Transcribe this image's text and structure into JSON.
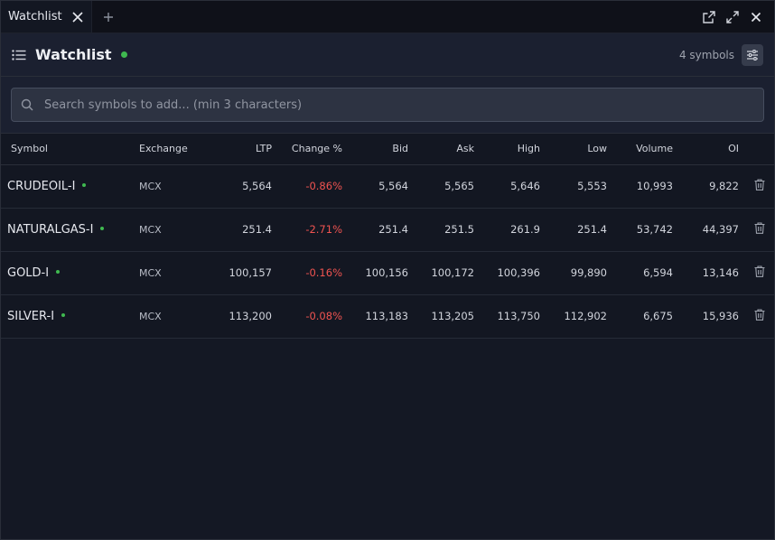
{
  "tab": {
    "label": "Watchlist"
  },
  "header": {
    "title": "Watchlist",
    "symbol_count": "4 symbols"
  },
  "search": {
    "placeholder": "Search symbols to add... (min 3 characters)"
  },
  "columns": [
    "Symbol",
    "Exchange",
    "LTP",
    "Change %",
    "Bid",
    "Ask",
    "High",
    "Low",
    "Volume",
    "OI"
  ],
  "rows": [
    {
      "symbol": "CRUDEOIL-I",
      "exchange": "MCX",
      "ltp": "5,564",
      "change": "-0.86%",
      "bid": "5,564",
      "ask": "5,565",
      "high": "5,646",
      "low": "5,553",
      "volume": "10,993",
      "oi": "9,822"
    },
    {
      "symbol": "NATURALGAS-I",
      "exchange": "MCX",
      "ltp": "251.4",
      "change": "-2.71%",
      "bid": "251.4",
      "ask": "251.5",
      "high": "261.9",
      "low": "251.4",
      "volume": "53,742",
      "oi": "44,397"
    },
    {
      "symbol": "GOLD-I",
      "exchange": "MCX",
      "ltp": "100,157",
      "change": "-0.16%",
      "bid": "100,156",
      "ask": "100,172",
      "high": "100,396",
      "low": "99,890",
      "volume": "6,594",
      "oi": "13,146"
    },
    {
      "symbol": "SILVER-I",
      "exchange": "MCX",
      "ltp": "113,200",
      "change": "-0.08%",
      "bid": "113,183",
      "ask": "113,205",
      "high": "113,750",
      "low": "112,902",
      "volume": "6,675",
      "oi": "15,936"
    }
  ],
  "colors": {
    "accent_live": "#3fb950",
    "negative": "#ef5350",
    "background": "#131722"
  },
  "icons": [
    "close-icon",
    "plus-icon",
    "external-link-icon",
    "expand-icon",
    "list-icon",
    "sliders-icon",
    "search-icon",
    "trash-icon"
  ]
}
